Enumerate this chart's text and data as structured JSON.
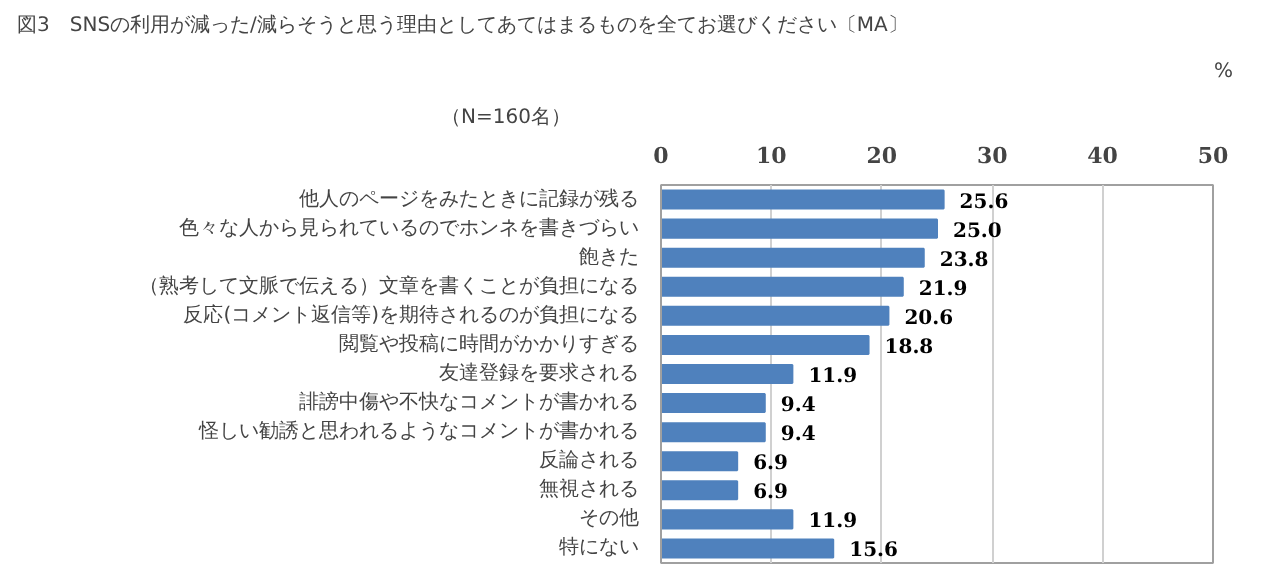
{
  "chart_data": {
    "type": "bar",
    "orientation": "horizontal",
    "title": "図3　SNSの利用が減った/減らそうと思う理由としてあてはまるものを全てお選びください〔MA〕",
    "subtitle": "（N=160名）",
    "xlabel": "%",
    "categories": [
      "他人のページをみたときに記録が残る",
      "色々な人から見られているのでホンネを書きづらい",
      "飽きた",
      "（熟考して文脈で伝える）文章を書くことが負担になる",
      "反応(コメント返信等)を期待されるのが負担になる",
      "閲覧や投稿に時間がかかりすぎる",
      "友達登録を要求される",
      "誹謗中傷や不快なコメントが書かれる",
      "怪しい勧誘と思われるようなコメントが書かれる",
      "反論される",
      "無視される",
      "その他",
      "特にない"
    ],
    "values": [
      25.6,
      25.0,
      23.8,
      21.9,
      20.6,
      18.8,
      11.9,
      9.4,
      9.4,
      6.9,
      6.9,
      11.9,
      15.6
    ],
    "value_labels": [
      "25.6",
      "25.0",
      "23.8",
      "21.9",
      "20.6",
      "18.8",
      "11.9",
      "9.4",
      "9.4",
      "6.9",
      "6.9",
      "11.9",
      "15.6"
    ],
    "color": "#4f81bd",
    "xlim": [
      0,
      50
    ],
    "xticks": [
      0,
      10,
      20,
      30,
      40,
      50
    ],
    "grid": "x"
  }
}
